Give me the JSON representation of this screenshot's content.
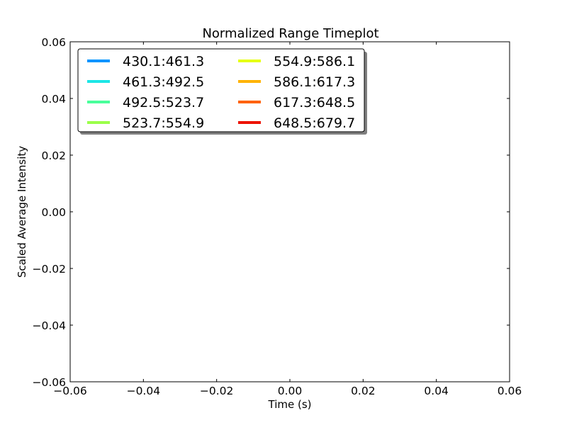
{
  "chart_data": {
    "type": "line",
    "title": "Normalized Range Timeplot",
    "xlabel": "Time (s)",
    "ylabel": "Scaled Average Intensity",
    "xlim": [
      -0.06,
      0.06
    ],
    "ylim": [
      -0.06,
      0.06
    ],
    "x_ticks": [
      -0.06,
      -0.04,
      -0.02,
      0.0,
      0.02,
      0.04,
      0.06
    ],
    "y_ticks": [
      -0.06,
      -0.04,
      -0.02,
      0.0,
      0.02,
      0.04,
      0.06
    ],
    "x_tick_labels": [
      "−0.06",
      "−0.04",
      "−0.02",
      "0.00",
      "0.02",
      "0.04",
      "0.06"
    ],
    "y_tick_labels": [
      "−0.06",
      "−0.04",
      "−0.02",
      "0.00",
      "0.02",
      "0.04",
      "0.06"
    ],
    "grid": false,
    "legend_position": "top-left",
    "legend_columns": 2,
    "series": [
      {
        "name": "430.1:461.3",
        "color": "#0094ff",
        "x": [],
        "y": []
      },
      {
        "name": "461.3:492.5",
        "color": "#1ce6e6",
        "x": [],
        "y": []
      },
      {
        "name": "492.5:523.7",
        "color": "#49ff9b",
        "x": [],
        "y": []
      },
      {
        "name": "523.7:554.9",
        "color": "#9bff49",
        "x": [],
        "y": []
      },
      {
        "name": "554.9:586.1",
        "color": "#e6ff16",
        "x": [],
        "y": []
      },
      {
        "name": "586.1:617.3",
        "color": "#ffb300",
        "x": [],
        "y": []
      },
      {
        "name": "617.3:648.5",
        "color": "#ff6200",
        "x": [],
        "y": []
      },
      {
        "name": "648.5:679.7",
        "color": "#ed1200",
        "x": [],
        "y": []
      }
    ]
  }
}
